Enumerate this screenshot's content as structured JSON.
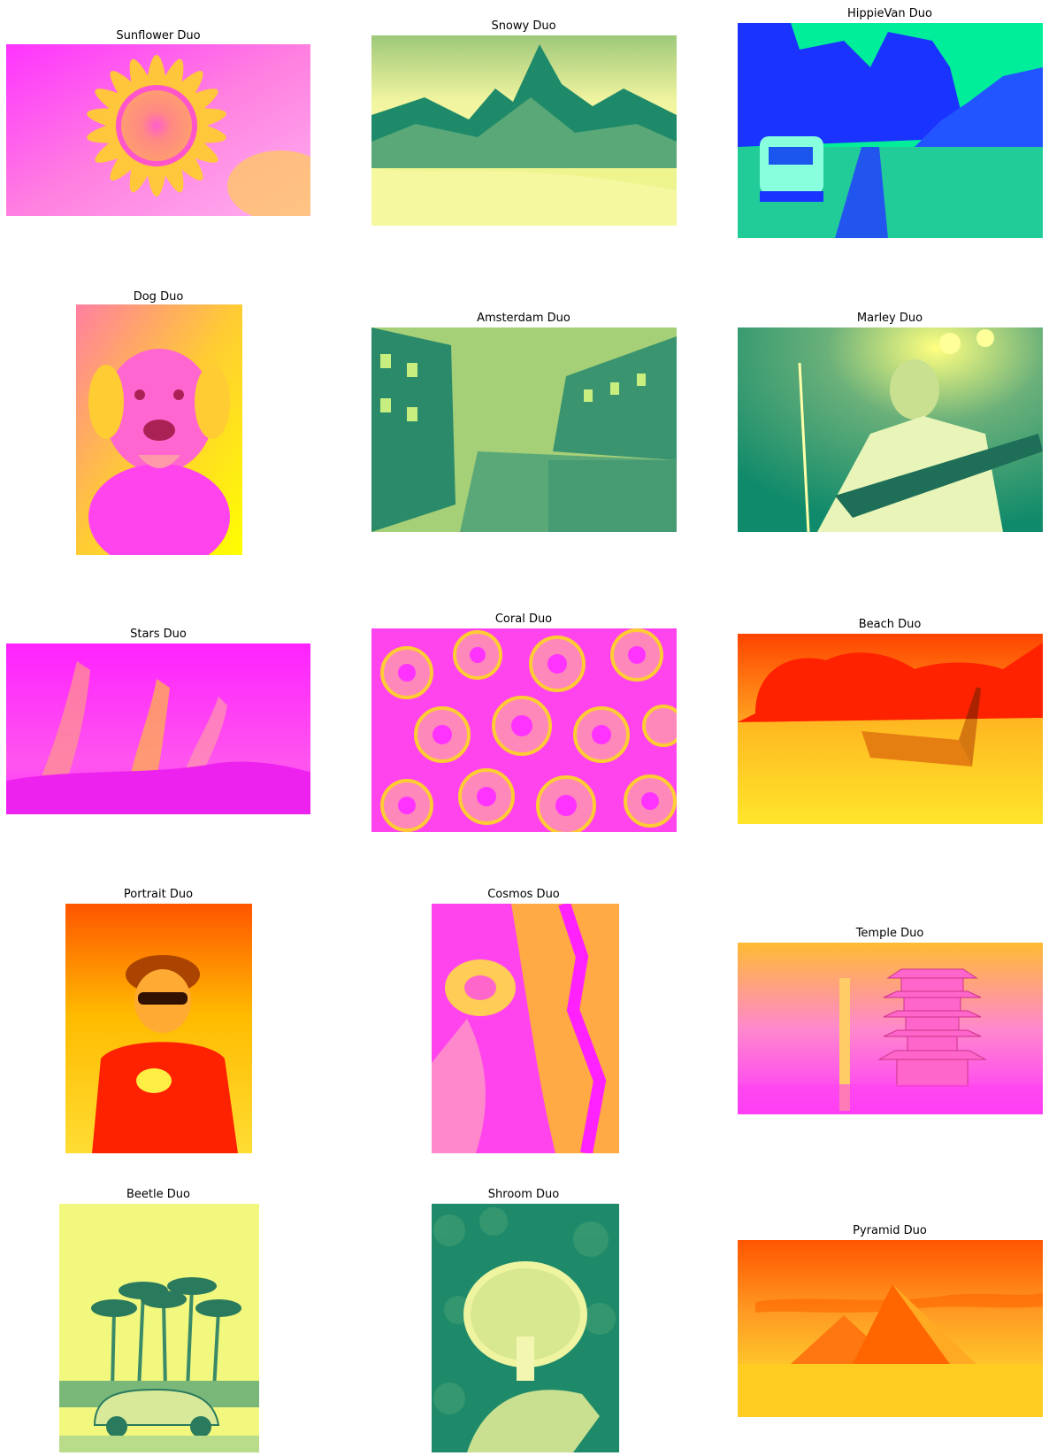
{
  "figure": {
    "panels": [
      {
        "id": "sunflower",
        "title": "Sunflower Duo",
        "colors": [
          "#ff33ff",
          "#ffcc33"
        ]
      },
      {
        "id": "snowy",
        "title": "Snowy Duo",
        "colors": [
          "#1f8a6a",
          "#ffff80"
        ]
      },
      {
        "id": "hippievan",
        "title": "HippieVan Duo",
        "colors": [
          "#1a33ff",
          "#00ff99"
        ]
      },
      {
        "id": "dog",
        "title": "Dog Duo",
        "colors": [
          "#ff33ff",
          "#ffff00"
        ]
      },
      {
        "id": "amsterdam",
        "title": "Amsterdam Duo",
        "colors": [
          "#1f8a6a",
          "#c8ee80"
        ]
      },
      {
        "id": "marley",
        "title": "Marley Duo",
        "colors": [
          "#0f8a6a",
          "#ffff80"
        ]
      },
      {
        "id": "stars",
        "title": "Stars Duo",
        "colors": [
          "#ff22ff",
          "#ffaa55"
        ]
      },
      {
        "id": "coral",
        "title": "Coral Duo",
        "colors": [
          "#ff22ff",
          "#ffcc33"
        ]
      },
      {
        "id": "beach",
        "title": "Beach Duo",
        "colors": [
          "#ff2200",
          "#ffff33"
        ]
      },
      {
        "id": "portrait",
        "title": "Portrait Duo",
        "colors": [
          "#ff3300",
          "#ffcc00"
        ]
      },
      {
        "id": "cosmos",
        "title": "Cosmos Duo",
        "colors": [
          "#ff22ff",
          "#ffff33"
        ]
      },
      {
        "id": "temple",
        "title": "Temple Duo",
        "colors": [
          "#ff33ff",
          "#ffcc33"
        ]
      },
      {
        "id": "beetle",
        "title": "Beetle Duo",
        "colors": [
          "#1f8a6a",
          "#ffff80"
        ]
      },
      {
        "id": "shroom",
        "title": "Shroom Duo",
        "colors": [
          "#1f8a6a",
          "#ffff80"
        ]
      },
      {
        "id": "pyramid",
        "title": "Pyramid Duo",
        "colors": [
          "#ff5500",
          "#ffee33"
        ]
      }
    ]
  }
}
